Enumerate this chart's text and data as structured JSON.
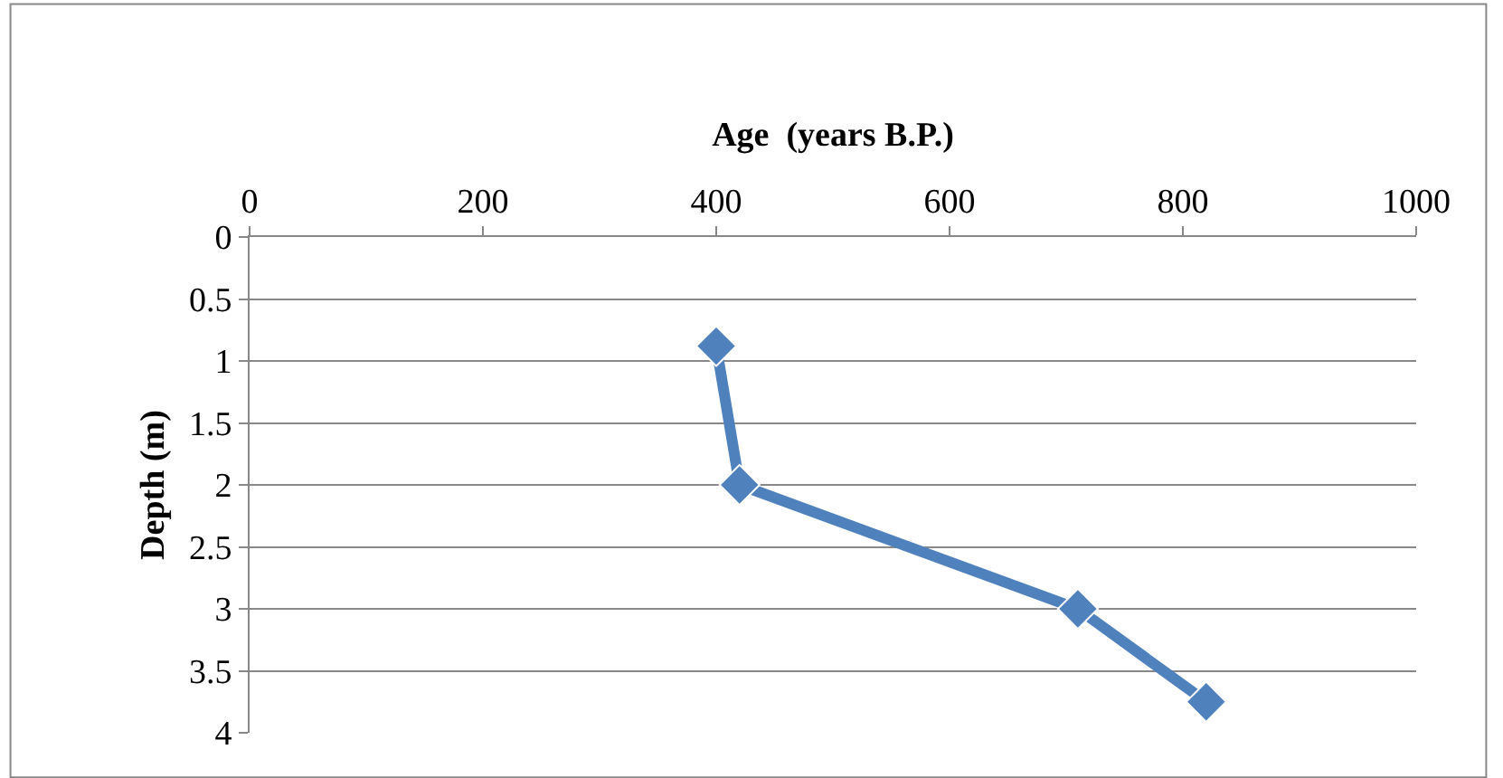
{
  "chart_data": {
    "type": "line",
    "xlabel": "Age  (years B.P.)",
    "ylabel": "Depth (m)",
    "x": [
      400,
      420,
      710,
      820
    ],
    "series": [
      {
        "color": "#4f81bd",
        "values": [
          0.88,
          2.0,
          3.0,
          3.75
        ]
      }
    ],
    "xlim": [
      0,
      1000
    ],
    "xticks": [
      0,
      200,
      400,
      600,
      800,
      1000
    ],
    "ylim": [
      4,
      0
    ],
    "yticks": [
      0,
      0.5,
      1,
      1.5,
      2,
      2.5,
      3,
      3.5,
      4
    ],
    "grid": "y",
    "marker": "diamond",
    "line_style": "solid"
  }
}
